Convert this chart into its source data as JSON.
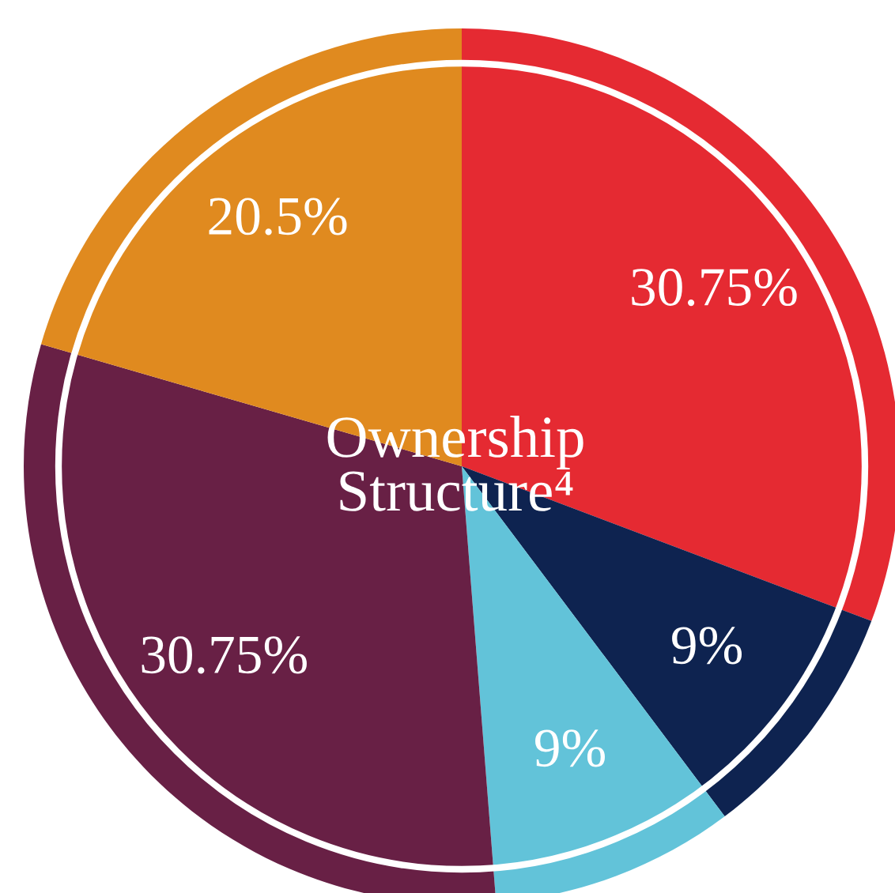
{
  "chart_data": {
    "type": "pie",
    "title": "Ownership\nStructure⁴",
    "categories": [
      null,
      null,
      null,
      null,
      null
    ],
    "values": [
      30.75,
      9,
      9,
      30.75,
      20.5
    ],
    "value_labels": [
      "30.75%",
      "9%",
      "9%",
      "30.75%",
      "20.5%"
    ],
    "colors": [
      "#e52a32",
      "#0e2350",
      "#62c3d9",
      "#682045",
      "#e08a1f"
    ]
  }
}
